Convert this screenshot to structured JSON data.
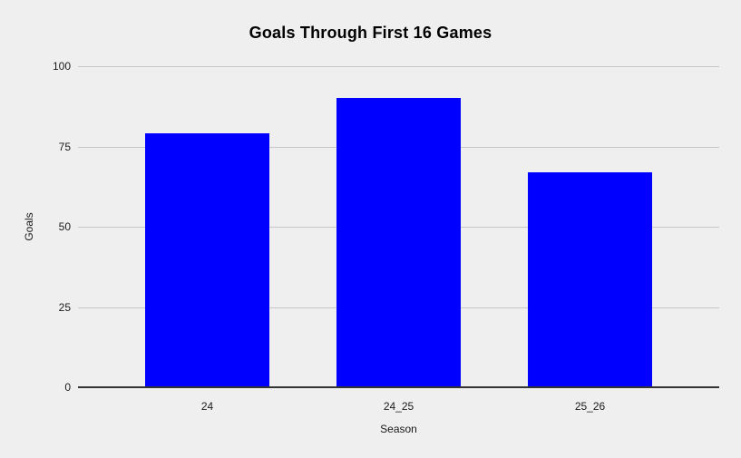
{
  "page": {
    "background": "#efefef"
  },
  "chart_data": {
    "type": "bar",
    "title": "Goals Through First 16 Games",
    "categories": [
      "24",
      "24_25",
      "25_26"
    ],
    "values": [
      79,
      90,
      67
    ],
    "xlabel": "Season",
    "ylabel": "Goals",
    "ylim": [
      0,
      100
    ],
    "yticks": [
      0,
      25,
      50,
      75,
      100
    ],
    "grid": true,
    "legend": "none",
    "bar_color": "#0000ff",
    "gridline_color": "#c7c7c7",
    "axis_line_color": "#333333",
    "title_color": "#000000",
    "label_color": "#1a1a1a"
  }
}
